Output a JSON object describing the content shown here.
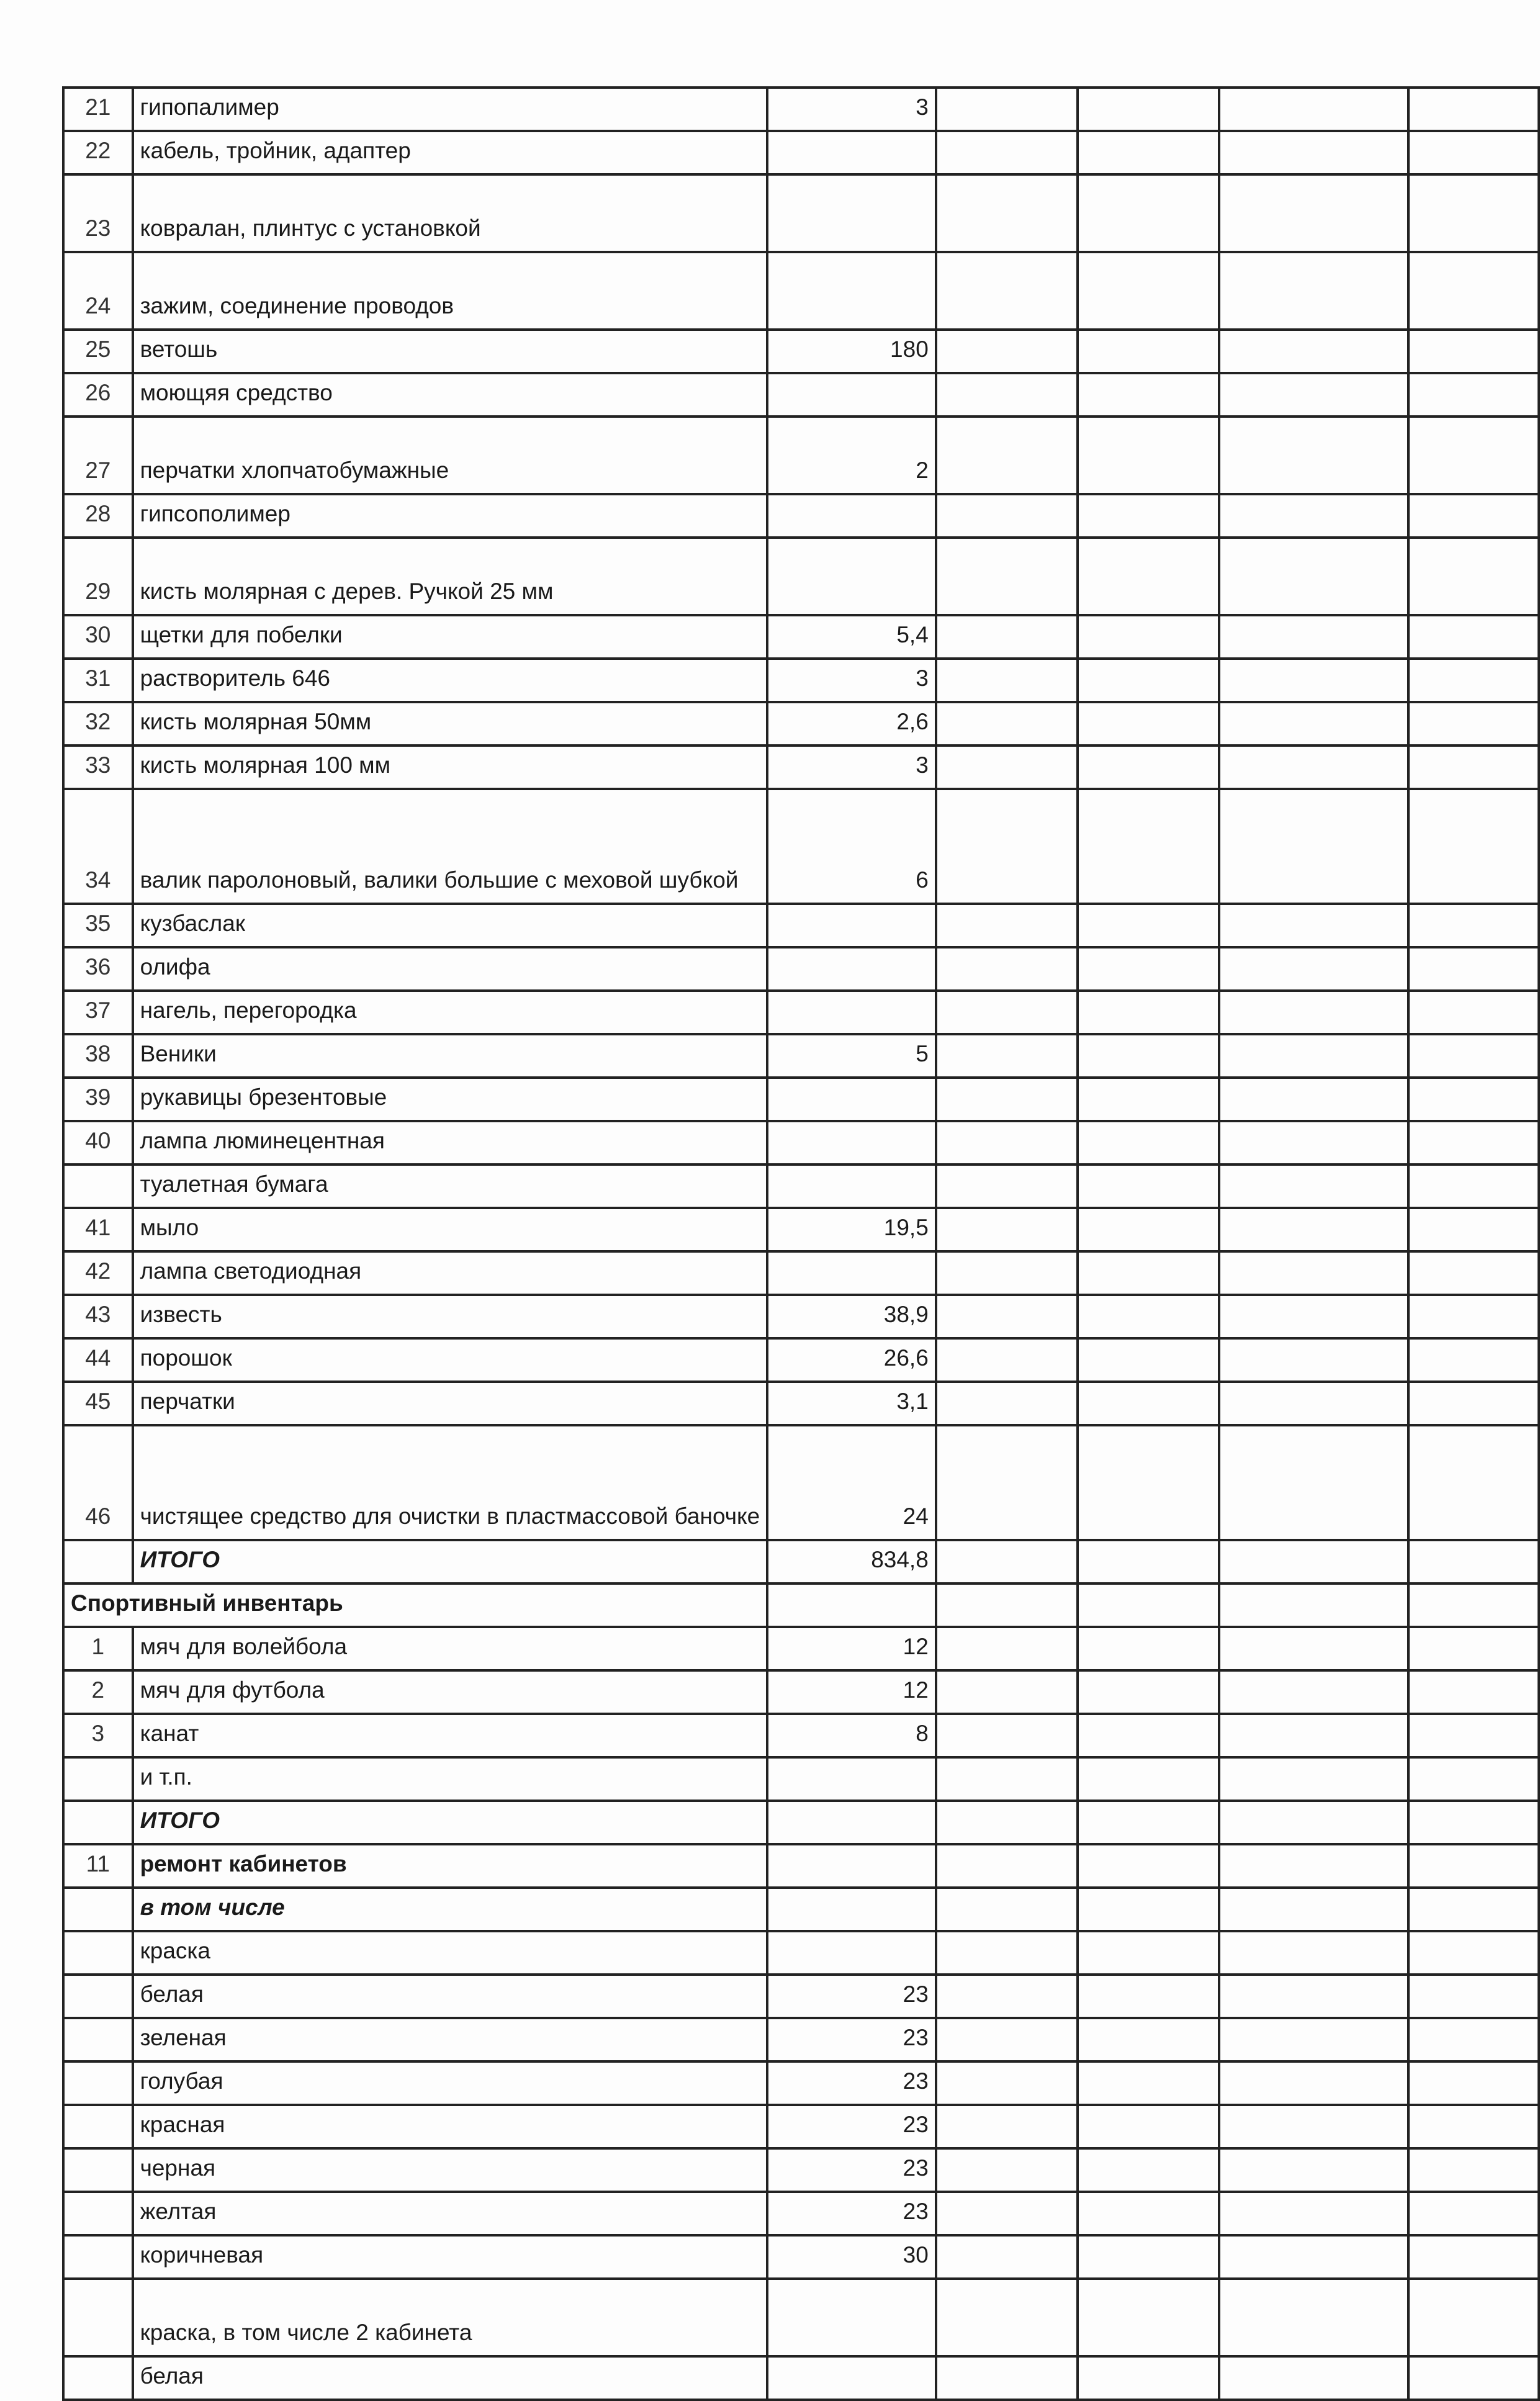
{
  "rows": [
    {
      "num": "21",
      "name": "гипопалимер",
      "qty": "3",
      "lines": 1
    },
    {
      "num": "22",
      "name": "кабель, тройник, адаптер",
      "qty": "",
      "lines": 1
    },
    {
      "num": "23",
      "name": "ковралан, плинтус с установкой",
      "qty": "",
      "lines": 2,
      "wrap": true
    },
    {
      "num": "24",
      "name": "зажим, соединение проводов",
      "qty": "",
      "lines": 2
    },
    {
      "num": "25",
      "name": "ветошь",
      "qty": "180",
      "lines": 1
    },
    {
      "num": "26",
      "name": "моющяя средство",
      "qty": "",
      "lines": 1
    },
    {
      "num": "27",
      "name": "перчатки хлопчатобумажные",
      "qty": "2",
      "lines": 2
    },
    {
      "num": "28",
      "name": "гипсополимер",
      "qty": "",
      "lines": 1
    },
    {
      "num": "29",
      "name": "кисть молярная с дерев. Ручкой 25 мм",
      "qty": "",
      "lines": 2,
      "wrap": true
    },
    {
      "num": "30",
      "name": "щетки для побелки",
      "qty": "5,4",
      "lines": 1
    },
    {
      "num": "31",
      "name": "растворитель 646",
      "qty": "3",
      "lines": 1
    },
    {
      "num": "32",
      "name": "кисть молярная 50мм",
      "qty": "2,6",
      "lines": 1
    },
    {
      "num": "33",
      "name": "кисть молярная 100 мм",
      "qty": "3",
      "lines": 1
    },
    {
      "num": "34",
      "name": "валик паролоновый, валики большие с меховой шубкой",
      "qty": "6",
      "lines": 3,
      "wrap": true
    },
    {
      "num": "35",
      "name": "кузбаслак",
      "qty": "",
      "lines": 1
    },
    {
      "num": "36",
      "name": "олифа",
      "qty": "",
      "lines": 1
    },
    {
      "num": "37",
      "name": "нагель, перегородка",
      "qty": "",
      "lines": 1
    },
    {
      "num": "38",
      "name": "Веники",
      "qty": "5",
      "lines": 1
    },
    {
      "num": "39",
      "name": "рукавицы брезентовые",
      "qty": "",
      "lines": 1
    },
    {
      "num": "40",
      "name": "лампа люминецентная",
      "qty": "",
      "lines": 1
    },
    {
      "num": "",
      "name": "туалетная бумага",
      "qty": "",
      "lines": 1
    },
    {
      "num": "41",
      "name": "мыло",
      "qty": "19,5",
      "lines": 1
    },
    {
      "num": "42",
      "name": "лампа светодиодная",
      "qty": "",
      "lines": 1
    },
    {
      "num": "43",
      "name": "известь",
      "qty": "38,9",
      "lines": 1
    },
    {
      "num": "44",
      "name": "порошок",
      "qty": "26,6",
      "lines": 1
    },
    {
      "num": "45",
      "name": "перчатки",
      "qty": "3,1",
      "lines": 1
    },
    {
      "num": "46",
      "name": "чистящее средство  для очистки  в пластмассовой баночке",
      "qty": "24",
      "lines": 3,
      "wrap": true
    },
    {
      "num": "",
      "name": "ИТОГО",
      "qty": "834,8",
      "lines": 1,
      "style": "bolditalic"
    },
    {
      "num": "",
      "name": "Спортивный инвентарь",
      "qty": "",
      "lines": 1,
      "style": "bold",
      "span": true
    },
    {
      "num": "1",
      "name": "мяч для волейбола",
      "qty": "12",
      "lines": 1
    },
    {
      "num": "2",
      "name": "мяч для футбола",
      "qty": "12",
      "lines": 1
    },
    {
      "num": "3",
      "name": "канат",
      "qty": "8",
      "lines": 1
    },
    {
      "num": "",
      "name": "и т.п.",
      "qty": "",
      "lines": 1
    },
    {
      "num": "",
      "name": "ИТОГО",
      "qty": "",
      "lines": 1,
      "style": "bolditalic"
    },
    {
      "num": "11",
      "name": "ремонт кабинетов",
      "qty": "",
      "lines": 1,
      "style": "bold"
    },
    {
      "num": "",
      "name": "в том числе",
      "qty": "",
      "lines": 1,
      "style": "bolditalic"
    },
    {
      "num": "",
      "name": "краска",
      "qty": "",
      "lines": 1
    },
    {
      "num": "",
      "name": "белая",
      "qty": "23",
      "lines": 1
    },
    {
      "num": "",
      "name": "зеленая",
      "qty": "23",
      "lines": 1
    },
    {
      "num": "",
      "name": "голубая",
      "qty": "23",
      "lines": 1
    },
    {
      "num": "",
      "name": "красная",
      "qty": "23",
      "lines": 1
    },
    {
      "num": "",
      "name": "черная",
      "qty": "23",
      "lines": 1
    },
    {
      "num": "",
      "name": "желтая",
      "qty": "23",
      "lines": 1
    },
    {
      "num": "",
      "name": "коричневая",
      "qty": "30",
      "lines": 1
    },
    {
      "num": "",
      "name": "краска, в том числе 2 кабинета",
      "qty": "",
      "lines": 2
    },
    {
      "num": "",
      "name": "белая",
      "qty": "",
      "lines": 1
    }
  ]
}
